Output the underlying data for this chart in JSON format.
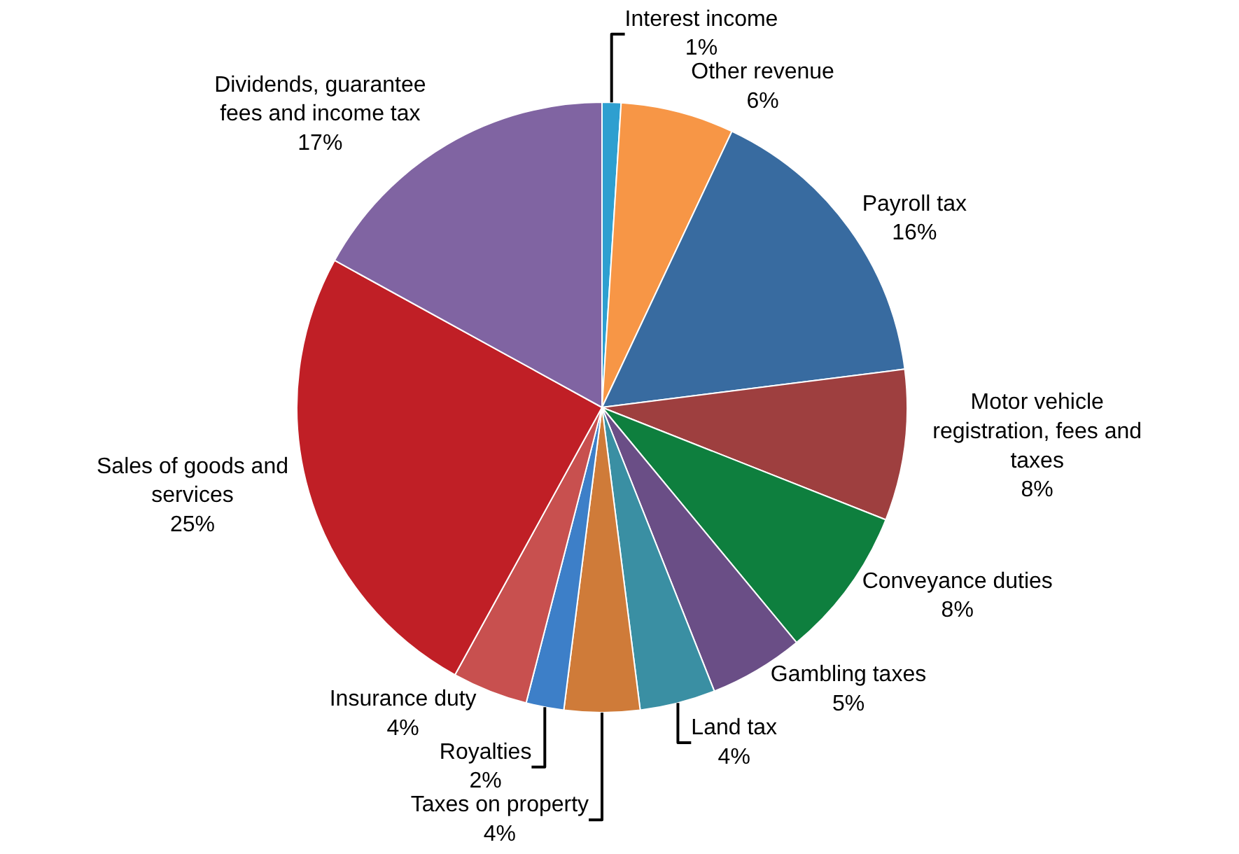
{
  "chart_data": {
    "type": "pie",
    "categories": [
      "Interest income",
      "Other revenue",
      "Payroll tax",
      "Motor vehicle registration, fees and taxes",
      "Conveyance duties",
      "Gambling taxes",
      "Land tax",
      "Taxes on property",
      "Royalties",
      "Insurance duty",
      "Sales of goods and services",
      "Dividends, guarantee fees and income tax"
    ],
    "values": [
      1,
      6,
      16,
      8,
      8,
      5,
      4,
      4,
      2,
      4,
      25,
      17
    ],
    "value_labels": [
      "1%",
      "6%",
      "16%",
      "8%",
      "8%",
      "5%",
      "4%",
      "4%",
      "2%",
      "4%",
      "25%",
      "17%"
    ],
    "colors": [
      "#2e9fd0",
      "#f79646",
      "#386ba0",
      "#9e3f3f",
      "#0e7f3e",
      "#6a4e86",
      "#3a8fa3",
      "#cf7b39",
      "#3d7fc8",
      "#c8504f",
      "#c01f26",
      "#8064a2"
    ],
    "legend": false
  }
}
